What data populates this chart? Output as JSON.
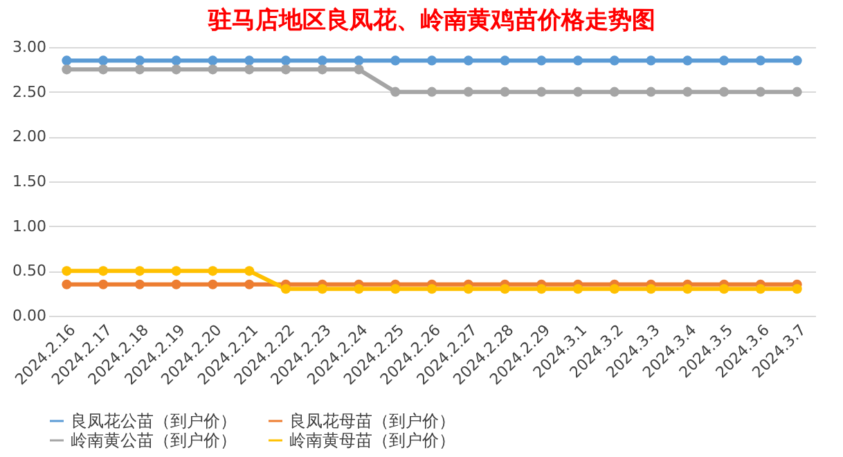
{
  "chart_data": {
    "type": "line",
    "title": "驻马店地区良凤花、岭南黄鸡苗价格走势图",
    "categories": [
      "2024.2.16",
      "2024.2.17",
      "2024.2.18",
      "2024.2.19",
      "2024.2.20",
      "2024.2.21",
      "2024.2.22",
      "2024.2.23",
      "2024.2.24",
      "2024.2.25",
      "2024.2.26",
      "2024.2.27",
      "2024.2.28",
      "2024.2.29",
      "2024.3.1",
      "2024.3.2",
      "2024.3.3",
      "2024.3.4",
      "2024.3.5",
      "2024.3.6",
      "2024.3.7"
    ],
    "series": [
      {
        "name": "良凤花公苗（到户价）",
        "color": "#5b9bd5",
        "values": [
          2.85,
          2.85,
          2.85,
          2.85,
          2.85,
          2.85,
          2.85,
          2.85,
          2.85,
          2.85,
          2.85,
          2.85,
          2.85,
          2.85,
          2.85,
          2.85,
          2.85,
          2.85,
          2.85,
          2.85,
          2.85
        ]
      },
      {
        "name": "良凤花母苗（到户价）",
        "color": "#ed7d31",
        "values": [
          0.35,
          0.35,
          0.35,
          0.35,
          0.35,
          0.35,
          0.35,
          0.35,
          0.35,
          0.35,
          0.35,
          0.35,
          0.35,
          0.35,
          0.35,
          0.35,
          0.35,
          0.35,
          0.35,
          0.35,
          0.35
        ]
      },
      {
        "name": "岭南黄公苗（到户价）",
        "color": "#a5a5a5",
        "values": [
          2.75,
          2.75,
          2.75,
          2.75,
          2.75,
          2.75,
          2.75,
          2.75,
          2.75,
          2.5,
          2.5,
          2.5,
          2.5,
          2.5,
          2.5,
          2.5,
          2.5,
          2.5,
          2.5,
          2.5,
          2.5
        ]
      },
      {
        "name": "岭南黄母苗（到户价）",
        "color": "#ffc000",
        "values": [
          0.5,
          0.5,
          0.5,
          0.5,
          0.5,
          0.5,
          0.3,
          0.3,
          0.3,
          0.3,
          0.3,
          0.3,
          0.3,
          0.3,
          0.3,
          0.3,
          0.3,
          0.3,
          0.3,
          0.3,
          0.3
        ]
      }
    ],
    "ylim": [
      0,
      3
    ],
    "yticks": [
      {
        "value": 0,
        "label": "0.00"
      },
      {
        "value": 0.5,
        "label": "0.50"
      },
      {
        "value": 1,
        "label": "1.00"
      },
      {
        "value": 1.5,
        "label": "1.50"
      },
      {
        "value": 2,
        "label": "2.00"
      },
      {
        "value": 2.5,
        "label": "2.50"
      },
      {
        "value": 3,
        "label": "3.00"
      }
    ],
    "grid": "y",
    "legend": "bottom",
    "marker": "circle",
    "line_style": "solid"
  }
}
